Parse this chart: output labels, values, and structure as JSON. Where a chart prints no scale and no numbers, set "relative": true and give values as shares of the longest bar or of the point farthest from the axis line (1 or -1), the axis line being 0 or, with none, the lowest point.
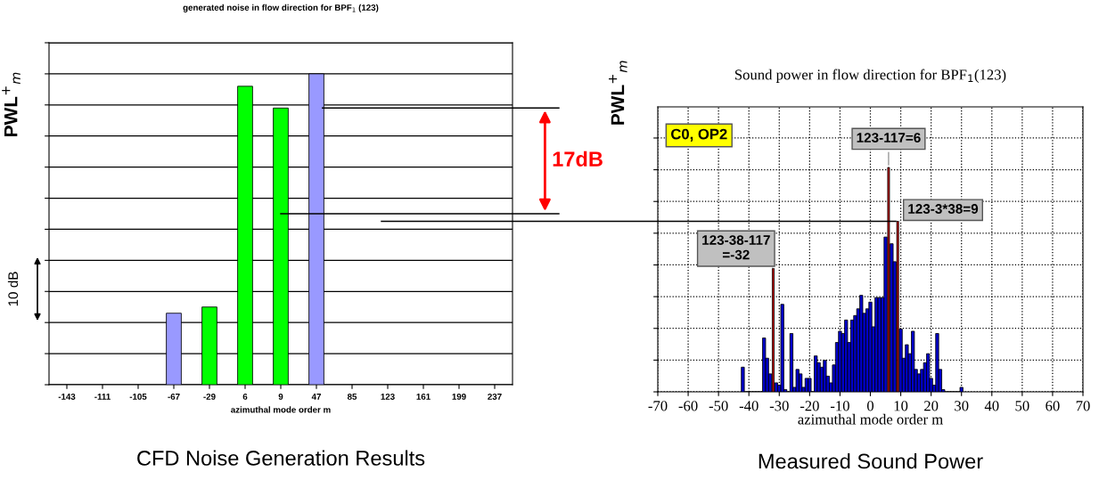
{
  "chart_data": [
    {
      "type": "bar",
      "title": "generated noise in flow direction for BPF$_{1}$ (123)",
      "xlabel": "azimuthal mode order m",
      "ylabel": "PWL$^{+}$$_{m}$",
      "categories": [
        "-143",
        "-111",
        "-105",
        "-67",
        "-29",
        "6",
        "9",
        "47",
        "85",
        "123",
        "161",
        "199",
        "237"
      ],
      "values": [
        null,
        null,
        null,
        0.23,
        0.25,
        0.96,
        0.89,
        1,
        null,
        null,
        null,
        null,
        null
      ],
      "colors": [
        "#00ff00",
        "#00ff00",
        "#00ff00",
        "#9999ff",
        "#00ff00",
        "#00ff00",
        "#00ff00",
        "#9999ff",
        "#00ff00",
        "#00ff00",
        "#00ff00",
        "#00ff00",
        "#00ff00"
      ],
      "relative": true,
      "grid": "y",
      "tick_labels": "x",
      "legend": false,
      "ref_lines": [
        {
          "axis": "y",
          "value": 0.89
        },
        {
          "axis": "y",
          "value": 0.55
        }
      ],
      "annotations": [
        "10 dB",
        "17dB",
        "CFD Noise Generation Results"
      ]
    },
    {
      "type": "bar",
      "title": "Sound power in flow direction for BPF$_{1}$(123)",
      "xlabel": "azimuthal mode order m",
      "ylabel": "PWL$^{+}$$_{m}$",
      "relative": true,
      "xlim": [
        -70,
        70
      ],
      "xticks": [
        -70,
        -60,
        -50,
        -40,
        -30,
        -20,
        -10,
        0,
        10,
        20,
        30,
        40,
        50,
        60,
        70
      ],
      "grid": true,
      "tick_labels": "x",
      "legend": false,
      "series": [
        {
          "color": "#0000cc",
          "x": [
            -42,
            -41,
            -40,
            -39,
            -38,
            -37,
            -36,
            -35,
            -34,
            -33,
            -32,
            -31,
            -30,
            -29,
            -28,
            -27,
            -26,
            -25,
            -24,
            -23,
            -22,
            -21,
            -20,
            -19,
            -18,
            -17,
            -16,
            -15,
            -14,
            -13,
            -12,
            -11,
            -10,
            -9,
            -8,
            -7,
            -6,
            -5,
            -4,
            -3,
            -2,
            -1,
            0,
            1,
            2,
            3,
            4,
            5,
            6,
            7,
            8,
            9,
            10,
            11,
            12,
            13,
            14,
            15,
            16,
            17,
            18,
            19,
            20,
            21,
            22,
            23,
            24,
            25,
            26,
            27,
            28,
            29,
            30
          ],
          "values": [
            0.11,
            0,
            0,
            0,
            0,
            0,
            0,
            0.24,
            0.15,
            0.08,
            null,
            0.04,
            0.03,
            0.39,
            0.01,
            0,
            0.26,
            0.02,
            0.1,
            0.08,
            0.02,
            0.06,
            0.06,
            0,
            0.16,
            0.13,
            0.11,
            0.14,
            0.07,
            0.04,
            0.12,
            0.22,
            0.27,
            0.26,
            0.32,
            0.22,
            0.32,
            0.34,
            0.37,
            0.43,
            0.35,
            0.37,
            0.4,
            0.29,
            0.42,
            0.42,
            0.42,
            0.69,
            null,
            0.66,
            0.58,
            null,
            0.28,
            0.15,
            0.21,
            0.17,
            0.27,
            0.1,
            0.08,
            0.1,
            0.13,
            0.17,
            0.06,
            0.03,
            0.26,
            0.1,
            0.01,
            0,
            0,
            0,
            0,
            0,
            0.02
          ]
        },
        {
          "color": "#cc0000",
          "x": [
            -32,
            6,
            9
          ],
          "values": [
            0.55,
            1,
            0.76
          ]
        }
      ],
      "ref_lines": [
        {
          "axis": "y",
          "value": 0.76
        }
      ],
      "annotations": [
        "C0, OP2",
        {
          "text": "123-117=6",
          "x": 6,
          "y": 1
        },
        {
          "text": "123-3*38=9",
          "x": 9,
          "y": 0.76
        },
        {
          "text": "123-38-117\n=-32",
          "x": -32,
          "y": 0.55
        },
        "Measured Sound Power"
      ]
    }
  ]
}
